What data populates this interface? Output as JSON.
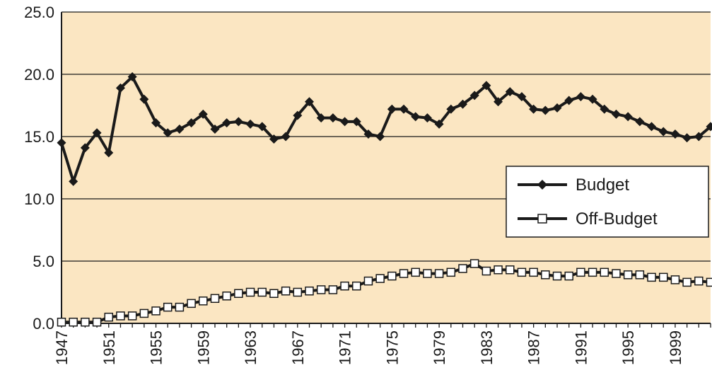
{
  "chart_data": {
    "type": "line",
    "title": "",
    "xlabel": "",
    "ylabel": "",
    "xlim": [
      1947,
      2002
    ],
    "ylim": [
      0,
      25
    ],
    "y_ticks": [
      "0.0",
      "5.0",
      "10.0",
      "15.0",
      "20.0",
      "25.0"
    ],
    "x_ticks": [
      "1947",
      "1951",
      "1955",
      "1959",
      "1963",
      "1967",
      "1971",
      "1975",
      "1979",
      "1983",
      "1987",
      "1991",
      "1995",
      "1999"
    ],
    "grid": "horizontal",
    "legend_position": "right",
    "colors": {
      "plot_background": "#fbe6c2",
      "line": "#1a1a1a",
      "grid": "#1a1a1a"
    },
    "x": [
      1947,
      1948,
      1949,
      1950,
      1951,
      1952,
      1953,
      1954,
      1955,
      1956,
      1957,
      1958,
      1959,
      1960,
      1961,
      1962,
      1963,
      1964,
      1965,
      1966,
      1967,
      1968,
      1969,
      1970,
      1971,
      1972,
      1973,
      1974,
      1975,
      1976,
      1977,
      1978,
      1979,
      1980,
      1981,
      1982,
      1983,
      1984,
      1985,
      1986,
      1987,
      1988,
      1989,
      1990,
      1991,
      1992,
      1993,
      1994,
      1995,
      1996,
      1997,
      1998,
      1999,
      2000,
      2001,
      2002
    ],
    "series": [
      {
        "name": "Budget",
        "marker": "filled-diamond",
        "values": [
          14.5,
          11.4,
          14.1,
          15.3,
          13.7,
          18.9,
          19.8,
          18.0,
          16.1,
          15.3,
          15.6,
          16.1,
          16.8,
          15.6,
          16.1,
          16.2,
          16.0,
          15.8,
          14.8,
          15.0,
          16.7,
          17.8,
          16.5,
          16.5,
          16.2,
          16.2,
          15.2,
          15.0,
          17.2,
          17.2,
          16.6,
          16.5,
          16.0,
          17.2,
          17.6,
          18.3,
          19.1,
          17.8,
          18.6,
          18.2,
          17.2,
          17.1,
          17.3,
          17.9,
          18.2,
          18.0,
          17.2,
          16.8,
          16.6,
          16.2,
          15.8,
          15.4,
          15.2,
          14.9,
          15.0,
          15.8
        ]
      },
      {
        "name": "Off-Budget",
        "marker": "open-square",
        "values": [
          0.1,
          0.1,
          0.1,
          0.1,
          0.5,
          0.6,
          0.6,
          0.8,
          1.0,
          1.3,
          1.3,
          1.6,
          1.8,
          2.0,
          2.2,
          2.4,
          2.5,
          2.5,
          2.4,
          2.6,
          2.5,
          2.6,
          2.7,
          2.7,
          3.0,
          3.0,
          3.4,
          3.6,
          3.8,
          4.0,
          4.1,
          4.0,
          4.0,
          4.1,
          4.4,
          4.8,
          4.2,
          4.3,
          4.3,
          4.1,
          4.1,
          3.9,
          3.8,
          3.8,
          4.1,
          4.1,
          4.1,
          4.0,
          3.9,
          3.9,
          3.7,
          3.7,
          3.5,
          3.3,
          3.4,
          3.3
        ]
      }
    ]
  }
}
